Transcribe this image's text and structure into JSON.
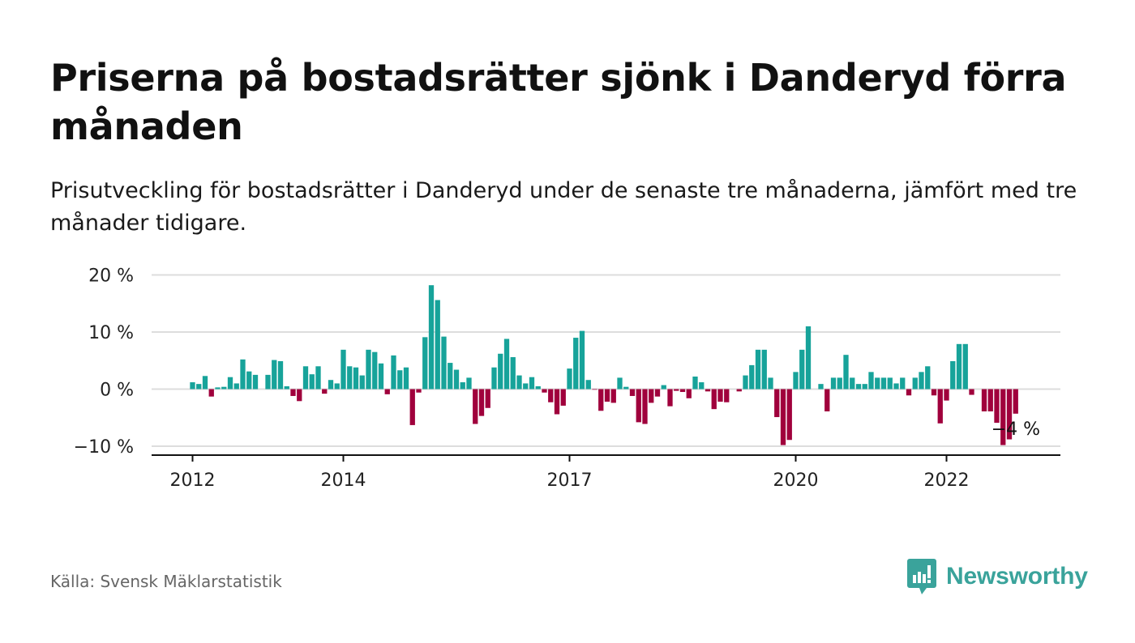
{
  "header": {
    "title": "Priserna på bostadsrätter sjönk i Danderyd förra månaden",
    "subtitle": "Prisutveckling för bostadsrätter i Danderyd under de senaste tre månaderna, jämfört med tre månader tidigare."
  },
  "footer": {
    "source": "Källa: Svensk Mäklarstatistik",
    "brand": "Newsworthy"
  },
  "colors": {
    "positive": "#17a39a",
    "negative": "#a0003c",
    "grid": "#dddddd",
    "axis": "#111111",
    "brand": "#3aa39b"
  },
  "chart_data": {
    "type": "bar",
    "unit": "%",
    "ylim": [
      -11,
      20
    ],
    "yticks": [
      {
        "value": 20,
        "label": "20 %"
      },
      {
        "value": 10,
        "label": "10 %"
      },
      {
        "value": 0,
        "label": "0 %"
      },
      {
        "value": -10,
        "label": "−10 %"
      }
    ],
    "xticks": [
      {
        "date": "2012-01",
        "label": "2012"
      },
      {
        "date": "2014-01",
        "label": "2014"
      },
      {
        "date": "2017-01",
        "label": "2017"
      },
      {
        "date": "2020-01",
        "label": "2020"
      },
      {
        "date": "2022-01",
        "label": "2022"
      }
    ],
    "grid": true,
    "last_value_label": "−4 %",
    "months": [
      "2012-01",
      "2012-02",
      "2012-03",
      "2012-04",
      "2012-05",
      "2012-06",
      "2012-07",
      "2012-08",
      "2012-09",
      "2012-10",
      "2012-11",
      "2012-12",
      "2013-01",
      "2013-02",
      "2013-03",
      "2013-04",
      "2013-05",
      "2013-06",
      "2013-07",
      "2013-08",
      "2013-09",
      "2013-10",
      "2013-11",
      "2013-12",
      "2014-01",
      "2014-02",
      "2014-03",
      "2014-04",
      "2014-05",
      "2014-06",
      "2014-07",
      "2014-08",
      "2014-09",
      "2014-10",
      "2014-11",
      "2014-12",
      "2015-01",
      "2015-02",
      "2015-03",
      "2015-04",
      "2015-05",
      "2015-06",
      "2015-07",
      "2015-08",
      "2015-09",
      "2015-10",
      "2015-11",
      "2015-12",
      "2016-01",
      "2016-02",
      "2016-03",
      "2016-04",
      "2016-05",
      "2016-06",
      "2016-07",
      "2016-08",
      "2016-09",
      "2016-10",
      "2016-11",
      "2016-12",
      "2017-01",
      "2017-02",
      "2017-03",
      "2017-04",
      "2017-05",
      "2017-06",
      "2017-07",
      "2017-08",
      "2017-09",
      "2017-10",
      "2017-11",
      "2017-12",
      "2018-01",
      "2018-02",
      "2018-03",
      "2018-04",
      "2018-05",
      "2018-06",
      "2018-07",
      "2018-08",
      "2018-09",
      "2018-10",
      "2018-11",
      "2018-12",
      "2019-01",
      "2019-02",
      "2019-03",
      "2019-04",
      "2019-05",
      "2019-06",
      "2019-07",
      "2019-08",
      "2019-09",
      "2019-10",
      "2019-11",
      "2019-12",
      "2020-01",
      "2020-02",
      "2020-03",
      "2020-04",
      "2020-05",
      "2020-06",
      "2020-07",
      "2020-08",
      "2020-09",
      "2020-10",
      "2020-11",
      "2020-12",
      "2021-01",
      "2021-02",
      "2021-03",
      "2021-04",
      "2021-05",
      "2021-06",
      "2021-07",
      "2021-08",
      "2021-09",
      "2021-10",
      "2021-11",
      "2021-12",
      "2022-01",
      "2022-02",
      "2022-03",
      "2022-04",
      "2022-05",
      "2022-06",
      "2022-07",
      "2022-08",
      "2022-09",
      "2022-10",
      "2022-11",
      "2022-12"
    ],
    "values": [
      1.2,
      0.9,
      2.3,
      -1.3,
      0.3,
      0.4,
      2.1,
      1.0,
      5.2,
      3.1,
      2.5,
      0,
      2.5,
      5.1,
      4.9,
      0.5,
      -1.2,
      -2.1,
      4.0,
      2.6,
      4.0,
      -0.8,
      1.6,
      1.0,
      6.9,
      4.0,
      3.8,
      2.4,
      6.9,
      6.5,
      4.5,
      -0.9,
      5.9,
      3.3,
      3.8,
      -6.3,
      -0.6,
      9.1,
      18.2,
      15.6,
      9.2,
      4.6,
      3.4,
      1.2,
      2.0,
      -6.1,
      -4.7,
      -3.3,
      3.8,
      6.2,
      8.8,
      5.6,
      2.4,
      1.0,
      2.1,
      0.5,
      -0.6,
      -2.3,
      -4.4,
      -2.9,
      3.6,
      9.0,
      10.2,
      1.6,
      -0.1,
      -3.8,
      -2.2,
      -2.4,
      2.0,
      0.4,
      -1.2,
      -5.8,
      -6.1,
      -2.4,
      -1.3,
      0.7,
      -3.0,
      -0.3,
      -0.5,
      -1.6,
      2.2,
      1.2,
      -0.4,
      -3.5,
      -2.2,
      -2.3,
      0,
      -0.4,
      2.4,
      4.2,
      6.9,
      6.9,
      2.0,
      -4.9,
      -9.8,
      -8.9,
      3.0,
      6.9,
      11.0,
      0,
      0.9,
      -3.9,
      2.0,
      2.0,
      6.0,
      2.0,
      0.9,
      0.9,
      3.0,
      2.0,
      2.0,
      2.0,
      1.0,
      2.0,
      -1.1,
      2.0,
      3.0,
      4.0,
      -1.1,
      -6.0,
      -2.0,
      4.9,
      7.9,
      7.9,
      -1.0,
      0,
      -3.9,
      -3.9,
      -5.9,
      -9.8,
      -8.8,
      -4.3
    ]
  }
}
